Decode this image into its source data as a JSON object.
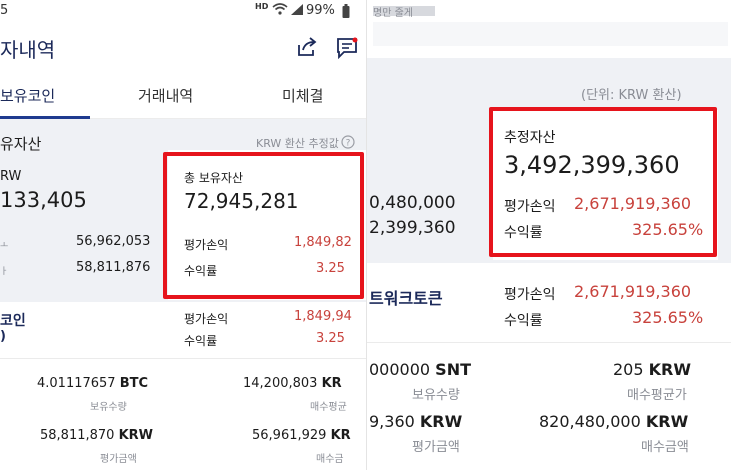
{
  "left": {
    "status": {
      "time_fragment": "5",
      "hd": "HD",
      "battery": "99%"
    },
    "header": {
      "title": "자내역"
    },
    "tabs": [
      {
        "label": "보유코인"
      },
      {
        "label": "거래내역"
      },
      {
        "label": "미체결"
      }
    ],
    "summary": {
      "section_title": "유자산",
      "krw_note": "KRW 환산 추정값",
      "krw_label": "RW",
      "krw_value": "133,405",
      "row1_value": "56,962,053",
      "row2_value": "58,811,876",
      "total_label": "총 보유자산",
      "total_value": "72,945,281",
      "pnl_label": "평가손익",
      "pnl_value": "1,849,82",
      "rate_label": "수익률",
      "rate_value": "3.25"
    },
    "coin": {
      "name_fragment": "코인",
      "sub_fragment": ")",
      "pnl_label": "평가손익",
      "pnl_value": "1,849,94",
      "rate_label": "수익률",
      "rate_value": "3.25",
      "qty_value": "4.01117657",
      "qty_unit": "BTC",
      "qty_label": "보유수량",
      "avg_value": "14,200,803",
      "avg_unit": "KR",
      "avg_label": "매수평균",
      "eval_value": "58,811,870",
      "eval_unit": "KRW",
      "eval_label": "평가금액",
      "buy_value": "56,961,929",
      "buy_unit": "KR",
      "buy_label": "매수금"
    }
  },
  "right": {
    "top_text": "명만 줄게",
    "unit_note": "(단위: KRW 환산)",
    "est_label": "추정자산",
    "est_value": "3,492,399,360",
    "left_val1": "0,480,000",
    "left_val2": "2,399,360",
    "pnl_label": "평가손익",
    "pnl_value": "2,671,919,360",
    "rate_label": "수익률",
    "rate_value": "325.65%",
    "coin_name": "트워크토큰",
    "coin_pnl_label": "평가손익",
    "coin_pnl_value": "2,671,919,360",
    "coin_rate_label": "수익률",
    "coin_rate_value": "325.65%",
    "qty_value": "000000",
    "qty_unit": "SNT",
    "qty_label": "보유수량",
    "avg_value": "205",
    "avg_unit": "KRW",
    "avg_label": "매수평균가",
    "eval_value": "9,360",
    "eval_unit": "KRW",
    "eval_label": "평가금액",
    "buy_value": "820,480,000",
    "buy_unit": "KRW",
    "buy_label": "매수금액"
  },
  "colors": {
    "highlight": "#e6141c",
    "loss_red": "#c8423c",
    "tab_accent": "#1f3b8f"
  }
}
